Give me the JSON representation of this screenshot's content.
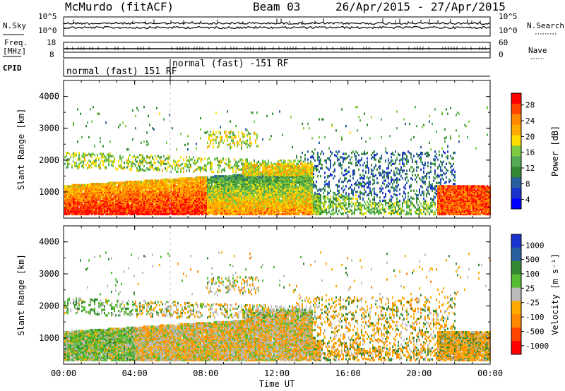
{
  "header": {
    "title": "McMurdo (fitACF)",
    "beam": "Beam 03",
    "date_range": "26/Apr/2015 - 27/Apr/2015"
  },
  "top_panels": {
    "nsky_label": "N.Sky",
    "nsearch_label": "N.Search",
    "noise_ticks_left": [
      "10^5",
      "10^0"
    ],
    "noise_ticks_right": [
      "10^5",
      "10^0"
    ],
    "freq_label_top": "Freq.",
    "freq_label_unit": "[MHz]",
    "freq_ticks": [
      "18",
      "8"
    ],
    "nave_label": "Nave",
    "nave_ticks": [
      "60",
      "0"
    ],
    "cpid_label": "CPID",
    "cpid_segments": [
      "normal (fast) 151 RF",
      "normal (fast) -151 RF"
    ]
  },
  "chart_data": [
    {
      "type": "heatmap",
      "title": "",
      "ylabel": "Slant Range [km]",
      "xlabel": "",
      "ylim": [
        180,
        4500
      ],
      "x_ticks": [
        "00:00",
        "04:00",
        "08:00",
        "12:00",
        "16:00",
        "20:00",
        "00:00"
      ],
      "y_ticks": [
        "1000",
        "2000",
        "3000",
        "4000"
      ],
      "colorbar": {
        "label": "Power [dB]",
        "ticks": [
          "28",
          "24",
          "20",
          "16",
          "12",
          "8",
          "4"
        ],
        "colors": [
          "#ff0000",
          "#ff4400",
          "#ff8800",
          "#ffaa00",
          "#ffdd00",
          "#7fcc40",
          "#55aa55",
          "#338833",
          "#2a5f9e",
          "#1a33cc",
          "#0000ff"
        ]
      }
    },
    {
      "type": "heatmap",
      "title": "",
      "ylabel": "Slant Range [km]",
      "xlabel": "Time UT",
      "ylim": [
        180,
        4500
      ],
      "x_ticks": [
        "00:00",
        "04:00",
        "08:00",
        "12:00",
        "16:00",
        "20:00",
        "00:00"
      ],
      "y_ticks": [
        "1000",
        "2000",
        "3000",
        "4000"
      ],
      "colorbar": {
        "label": "Velocity [m s⁻¹]",
        "ticks": [
          "1000",
          "500",
          "100",
          "25",
          "-25",
          "-100",
          "-500",
          "-1000"
        ],
        "colors": [
          "#1a33cc",
          "#2a5f9e",
          "#338833",
          "#55bb33",
          "#bbbbbb",
          "#ffaa00",
          "#ff8800",
          "#ff4400",
          "#ff0000"
        ]
      }
    }
  ]
}
